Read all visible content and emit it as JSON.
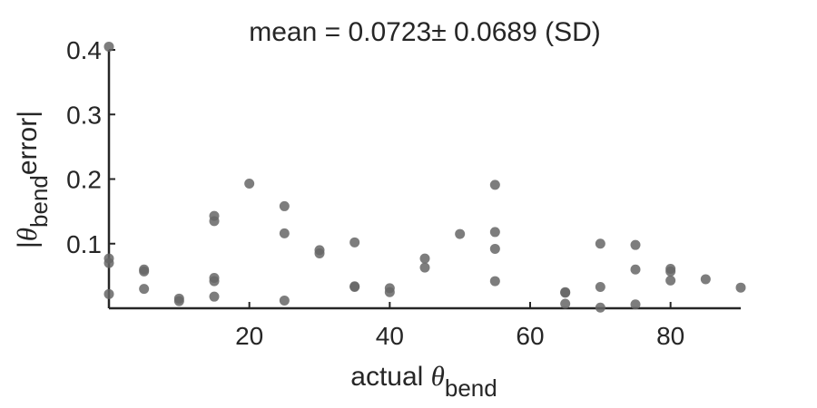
{
  "chart_data": {
    "type": "scatter",
    "title": "mean = 0.0723± 0.0689 (SD)",
    "xlabel": {
      "prefix": "actual ",
      "symbol": "θ",
      "subscript": "bend"
    },
    "ylabel": {
      "prefix": "|",
      "symbol": "θ",
      "subscript": "bend",
      "suffix": "error|"
    },
    "xlim": [
      0,
      90
    ],
    "ylim": [
      0,
      0.4
    ],
    "xticks": [
      20,
      40,
      60,
      80
    ],
    "xtick_labels": [
      "20",
      "40",
      "60",
      "80"
    ],
    "yticks": [
      0.1,
      0.2,
      0.3,
      0.4
    ],
    "ytick_labels": [
      "0.1",
      "0.2",
      "0.3",
      "0.4"
    ],
    "grid": false,
    "legend": "none",
    "marker_color": "#666666",
    "points": [
      {
        "x": 0,
        "y": 0.405
      },
      {
        "x": 0,
        "y": 0.077
      },
      {
        "x": 0,
        "y": 0.07
      },
      {
        "x": 0,
        "y": 0.022
      },
      {
        "x": 5,
        "y": 0.06
      },
      {
        "x": 5,
        "y": 0.057
      },
      {
        "x": 5,
        "y": 0.03
      },
      {
        "x": 10,
        "y": 0.015
      },
      {
        "x": 10,
        "y": 0.011
      },
      {
        "x": 15,
        "y": 0.143
      },
      {
        "x": 15,
        "y": 0.135
      },
      {
        "x": 15,
        "y": 0.047
      },
      {
        "x": 15,
        "y": 0.042
      },
      {
        "x": 15,
        "y": 0.018
      },
      {
        "x": 20,
        "y": 0.193
      },
      {
        "x": 25,
        "y": 0.158
      },
      {
        "x": 25,
        "y": 0.116
      },
      {
        "x": 25,
        "y": 0.012
      },
      {
        "x": 30,
        "y": 0.09
      },
      {
        "x": 30,
        "y": 0.085
      },
      {
        "x": 35,
        "y": 0.102
      },
      {
        "x": 35,
        "y": 0.034
      },
      {
        "x": 35,
        "y": 0.033
      },
      {
        "x": 40,
        "y": 0.031
      },
      {
        "x": 40,
        "y": 0.025
      },
      {
        "x": 45,
        "y": 0.077
      },
      {
        "x": 45,
        "y": 0.063
      },
      {
        "x": 50,
        "y": 0.115
      },
      {
        "x": 55,
        "y": 0.191
      },
      {
        "x": 55,
        "y": 0.118
      },
      {
        "x": 55,
        "y": 0.092
      },
      {
        "x": 55,
        "y": 0.042
      },
      {
        "x": 65,
        "y": 0.025
      },
      {
        "x": 65,
        "y": 0.024
      },
      {
        "x": 65,
        "y": 0.007
      },
      {
        "x": 70,
        "y": 0.1
      },
      {
        "x": 70,
        "y": 0.033
      },
      {
        "x": 70,
        "y": 0.001
      },
      {
        "x": 75,
        "y": 0.098
      },
      {
        "x": 75,
        "y": 0.06
      },
      {
        "x": 75,
        "y": 0.006
      },
      {
        "x": 80,
        "y": 0.061
      },
      {
        "x": 80,
        "y": 0.057
      },
      {
        "x": 80,
        "y": 0.043
      },
      {
        "x": 85,
        "y": 0.045
      },
      {
        "x": 90,
        "y": 0.032
      }
    ]
  }
}
